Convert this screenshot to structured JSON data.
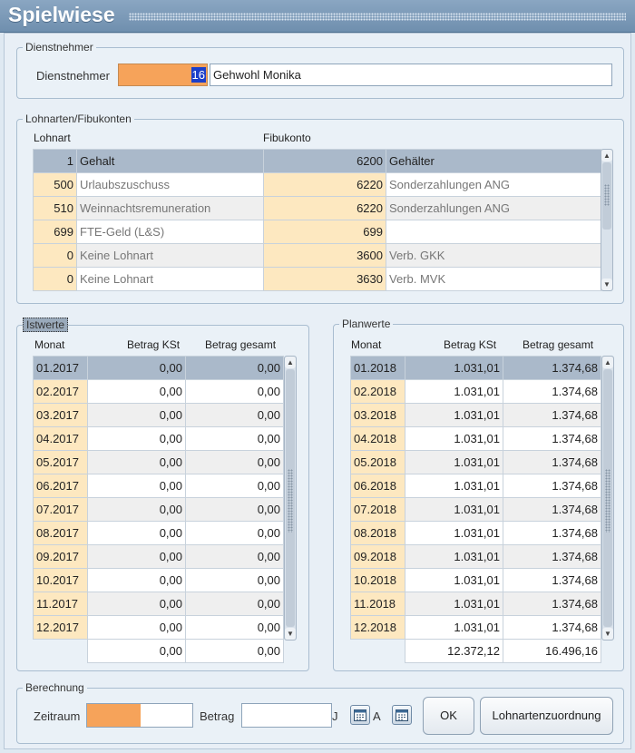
{
  "window": {
    "title": "Spielwiese"
  },
  "dienstnehmer": {
    "group_title": "Dienstnehmer",
    "label": "Dienstnehmer",
    "id": "16",
    "name": "Gehwohl Monika"
  },
  "lohnarten": {
    "group_title": "Lohnarten/Fibukonten",
    "col_lohnart": "Lohnart",
    "col_fibukonto": "Fibukonto",
    "rows": [
      {
        "nr": "1",
        "name": "Gehalt",
        "konto": "6200",
        "konto_name": "Gehälter"
      },
      {
        "nr": "500",
        "name": "Urlaubszuschuss",
        "konto": "6220",
        "konto_name": "Sonderzahlungen ANG"
      },
      {
        "nr": "510",
        "name": "Weinnachtsremuneration",
        "konto": "6220",
        "konto_name": "Sonderzahlungen ANG"
      },
      {
        "nr": "699",
        "name": "FTE-Geld (L&S)",
        "konto": "699",
        "konto_name": ""
      },
      {
        "nr": "0",
        "name": "Keine Lohnart",
        "konto": "3600",
        "konto_name": "Verb. GKK"
      },
      {
        "nr": "0",
        "name": "Keine Lohnart",
        "konto": "3630",
        "konto_name": "Verb. MVK"
      }
    ]
  },
  "istwerte": {
    "group_title": "Istwerte",
    "col_monat": "Monat",
    "col_kst": "Betrag KSt",
    "col_gesamt": "Betrag gesamt",
    "rows": [
      {
        "monat": "01.2017",
        "kst": "0,00",
        "gesamt": "0,00"
      },
      {
        "monat": "02.2017",
        "kst": "0,00",
        "gesamt": "0,00"
      },
      {
        "monat": "03.2017",
        "kst": "0,00",
        "gesamt": "0,00"
      },
      {
        "monat": "04.2017",
        "kst": "0,00",
        "gesamt": "0,00"
      },
      {
        "monat": "05.2017",
        "kst": "0,00",
        "gesamt": "0,00"
      },
      {
        "monat": "06.2017",
        "kst": "0,00",
        "gesamt": "0,00"
      },
      {
        "monat": "07.2017",
        "kst": "0,00",
        "gesamt": "0,00"
      },
      {
        "monat": "08.2017",
        "kst": "0,00",
        "gesamt": "0,00"
      },
      {
        "monat": "09.2017",
        "kst": "0,00",
        "gesamt": "0,00"
      },
      {
        "monat": "10.2017",
        "kst": "0,00",
        "gesamt": "0,00"
      },
      {
        "monat": "11.2017",
        "kst": "0,00",
        "gesamt": "0,00"
      },
      {
        "monat": "12.2017",
        "kst": "0,00",
        "gesamt": "0,00"
      }
    ],
    "sum_kst": "0,00",
    "sum_gesamt": "0,00"
  },
  "planwerte": {
    "group_title": "Planwerte",
    "col_monat": "Monat",
    "col_kst": "Betrag KSt",
    "col_gesamt": "Betrag gesamt",
    "rows": [
      {
        "monat": "01.2018",
        "kst": "1.031,01",
        "gesamt": "1.374,68"
      },
      {
        "monat": "02.2018",
        "kst": "1.031,01",
        "gesamt": "1.374,68"
      },
      {
        "monat": "03.2018",
        "kst": "1.031,01",
        "gesamt": "1.374,68"
      },
      {
        "monat": "04.2018",
        "kst": "1.031,01",
        "gesamt": "1.374,68"
      },
      {
        "monat": "05.2018",
        "kst": "1.031,01",
        "gesamt": "1.374,68"
      },
      {
        "monat": "06.2018",
        "kst": "1.031,01",
        "gesamt": "1.374,68"
      },
      {
        "monat": "07.2018",
        "kst": "1.031,01",
        "gesamt": "1.374,68"
      },
      {
        "monat": "08.2018",
        "kst": "1.031,01",
        "gesamt": "1.374,68"
      },
      {
        "monat": "09.2018",
        "kst": "1.031,01",
        "gesamt": "1.374,68"
      },
      {
        "monat": "10.2018",
        "kst": "1.031,01",
        "gesamt": "1.374,68"
      },
      {
        "monat": "11.2018",
        "kst": "1.031,01",
        "gesamt": "1.374,68"
      },
      {
        "monat": "12.2018",
        "kst": "1.031,01",
        "gesamt": "1.374,68"
      }
    ],
    "sum_kst": "12.372,12",
    "sum_gesamt": "16.496,16"
  },
  "berechnung": {
    "group_title": "Berechnung",
    "zeitraum_label": "Zeitraum",
    "betrag_label": "Betrag",
    "suffix_j": "J",
    "suffix_a": "A",
    "ok_label": "OK",
    "zuordnung_label": "Lohnartenzuordnung"
  },
  "colors": {
    "accent_orange": "#f6a35a",
    "key_cell": "#fde8c0",
    "selected_row": "#aab9ca",
    "title_bar": "#7b98b6"
  }
}
